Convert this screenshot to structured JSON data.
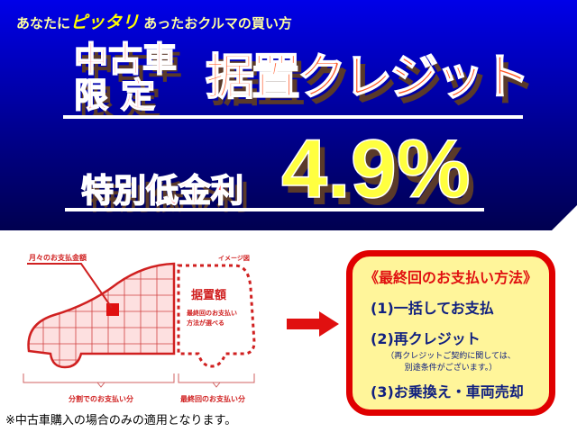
{
  "banner": {
    "tagline_pre": "あなたに",
    "tagline_em": "ピッタリ",
    "tagline_post": "あったおクルマの買い方",
    "used_car_line1": "中古車",
    "used_car_line2": "限定",
    "headline": "据置クレジット",
    "special_rate_label": "特別低金利",
    "rate": "4.9%"
  },
  "diagram": {
    "monthly_label": "月々のお支払金額",
    "image_label": "イメージ図",
    "deferred_label": "据置額",
    "deferred_note_line1": "最終回のお支払い",
    "deferred_note_line2": "方法が選べる",
    "installment_label": "分割でのお支払い分",
    "final_label": "最終回のお支払い分"
  },
  "options_box": {
    "title": "《最終回のお支払い方法》",
    "options": [
      "(1)一括してお支払",
      "(2)再クレジット",
      "(3)お乗換え・車両売却"
    ],
    "note_line1": "（再クレジットご契約に関しては、",
    "note_line2": "別途条件がございます。）"
  },
  "footnote": "※中古車購入の場合のみの適用となります。",
  "colors": {
    "banner_blue": "#0000e8",
    "accent_red": "#e00000",
    "box_yellow": "#fff59a",
    "rate_yellow": "#ffff40"
  }
}
